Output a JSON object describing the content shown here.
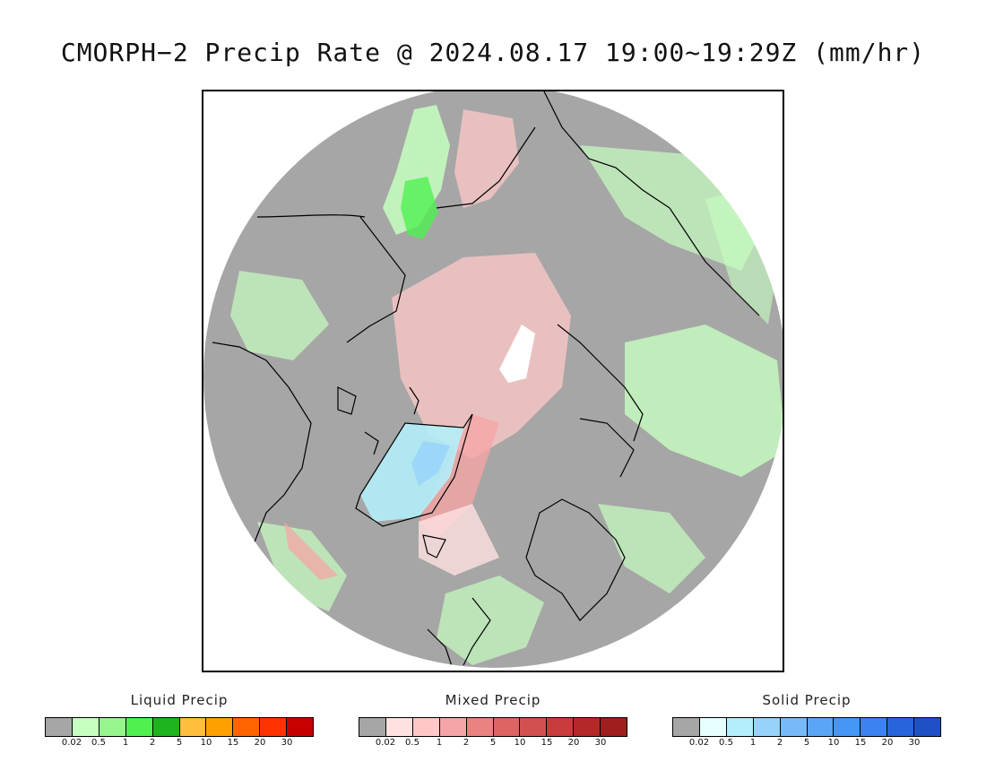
{
  "title": "CMORPH−2 Precip Rate @ 2024.08.17 19:00~19:29Z (mm/hr)",
  "map": {
    "projection": "polar stereographic, north pole",
    "colors": {
      "frame_bg": "#ffffff",
      "disk_no_precip": "#a6a6a6",
      "coastline": "#000000"
    }
  },
  "legends": [
    {
      "title": "Liquid Precip",
      "swatches": [
        "#a6a6a6",
        "#c7ffc0",
        "#96f58c",
        "#50f050",
        "#1eb41e",
        "#ffbe3c",
        "#ffa000",
        "#ff6400",
        "#ff3200",
        "#c80000"
      ],
      "ticks": [
        "0.02",
        "0.5",
        "1",
        "2",
        "5",
        "10",
        "15",
        "20",
        "30"
      ]
    },
    {
      "title": "Mixed Precip",
      "swatches": [
        "#a6a6a6",
        "#ffe1e1",
        "#ffc8c8",
        "#f5a5a5",
        "#eb8282",
        "#dc6464",
        "#d25050",
        "#c83c3c",
        "#b42828",
        "#a01e1e"
      ],
      "ticks": [
        "0.02",
        "0.5",
        "1",
        "2",
        "5",
        "10",
        "15",
        "20",
        "30"
      ]
    },
    {
      "title": "Solid Precip",
      "swatches": [
        "#a6a6a6",
        "#e6ffff",
        "#b4eefa",
        "#96d2fa",
        "#78b9fa",
        "#5aa5f5",
        "#4696f5",
        "#3c82f0",
        "#2864dc",
        "#1e50c8"
      ],
      "ticks": [
        "0.02",
        "0.5",
        "1",
        "2",
        "5",
        "10",
        "15",
        "20",
        "30"
      ]
    }
  ]
}
